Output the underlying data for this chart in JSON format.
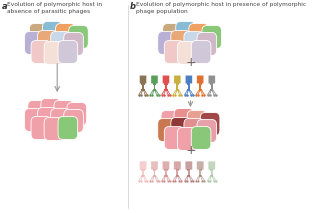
{
  "title_a": "Evolution of polymorphic host in\nabsence of parasitic phages",
  "title_b": "Evolution of polymorphic host in presence of polymorphic\nphage population",
  "label_a": "a",
  "label_b": "b",
  "bacteria_top_colors": [
    "#c8b090",
    "#85bbd5",
    "#f0a060",
    "#88c878",
    "#b0b0d0",
    "#e08888",
    "#f5d0d0",
    "#b0c8e0"
  ],
  "bacteria_top_layout": [
    [
      [
        -22,
        10
      ],
      [
        -7,
        12
      ],
      [
        9,
        10
      ],
      [
        24,
        8
      ]
    ],
    [
      [
        -28,
        2
      ],
      [
        -12,
        3
      ],
      [
        4,
        2
      ],
      [
        20,
        1
      ]
    ],
    [
      [
        -20,
        -7
      ],
      [
        -4,
        -8
      ],
      [
        12,
        -7
      ]
    ]
  ],
  "bacteria_top_colors_layout": [
    [
      "#c8b090",
      "#85bbd5",
      "#f0a060",
      "#88c878"
    ],
    [
      "#c8b8d8",
      "#e0a888",
      "#85bbd5",
      "#b8d0e8"
    ],
    [
      "#f5c8c8",
      "#f8e8e0",
      "#e0c8d8"
    ]
  ],
  "bacteria_bot_left_colors": [
    [
      "#f0a0a0",
      "#f0a0a0",
      "#f0a0a0",
      "#f0a0a0"
    ],
    [
      "#f0a0a0",
      "#f0a0a0",
      "#f0a0a0",
      "#f0a0a0"
    ],
    [
      "#f0a0a0",
      "#88c878"
    ]
  ],
  "bacteria_mid_right_colors": [
    [
      "#f0a0a0",
      "#e09090",
      "#e8a090",
      "#b06050"
    ],
    [
      "#d08060",
      "#a04040",
      "#e09090",
      "#e0a0a0"
    ],
    [
      "#f0a0a0",
      "#88c878"
    ]
  ],
  "phage_colors_top": [
    "#8B7355",
    "#5a9e5a",
    "#e05050",
    "#c8b040",
    "#4a80c0",
    "#e07030",
    "#909090"
  ],
  "phage_colors_bot": [
    "#e8a0a0",
    "#d08080",
    "#c06060",
    "#b05050",
    "#904040",
    "#906050",
    "#88b080"
  ],
  "arrow_color": "#999999",
  "plus_color": "#666666",
  "divider_color": "#cccccc"
}
